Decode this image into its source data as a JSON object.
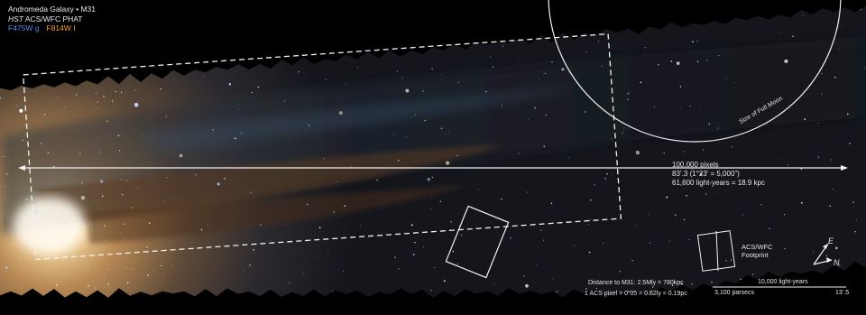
{
  "header": {
    "title": "Andromeda Galaxy • M31",
    "instrument_italic": "HST",
    "instrument_rest": " ACS/WFC PHAT",
    "filter_blue": "F475W g",
    "filter_orange": "F814W I"
  },
  "colors": {
    "background": "#000000",
    "filter_blue": "#5a8cf0",
    "filter_orange": "#f0a020",
    "annotation": "#f2f2f2"
  },
  "annotations": {
    "moon_label": "Size of Full Moon",
    "arrow_line1": "100,000 pixels",
    "arrow_line2": "83’.3 (1°23’ = 5,000”)",
    "arrow_line3": "61,600 light-years = 18.9 kpc",
    "footprint_line1": "ACS/WFC",
    "footprint_line2": "Footprint",
    "compass_e": "E",
    "compass_n": "N",
    "distance_line1": "Distance to M31: 2.5Mly = 780kpc",
    "distance_line2": "1 ACS pixel = 0”05 = 0.62ly = 0.19pc",
    "scale_top": "10,000 light-years",
    "scale_bottom_left": "3,100 parsecs",
    "scale_bottom_right": "13’.5"
  }
}
